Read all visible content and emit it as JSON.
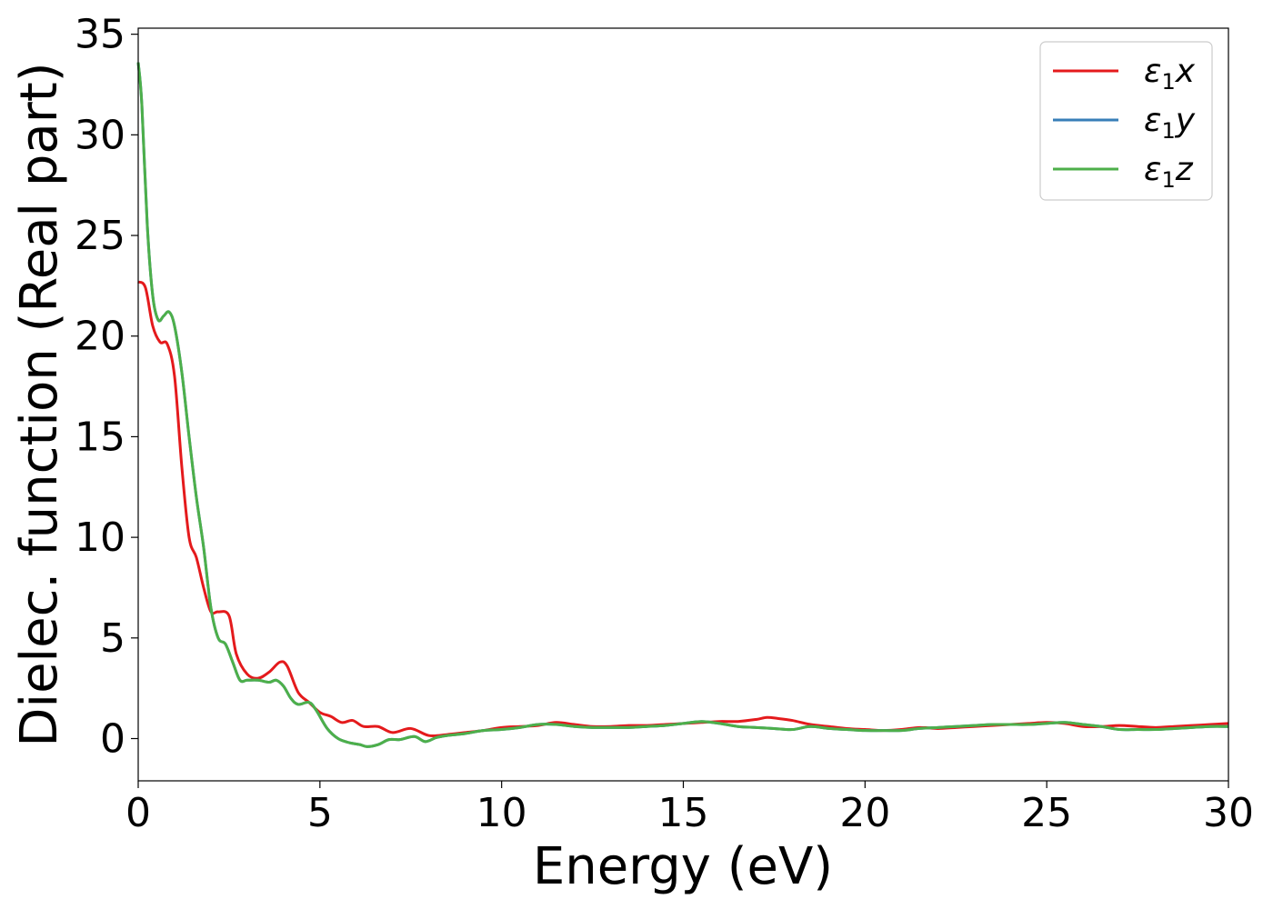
{
  "chart_data": {
    "type": "line",
    "xlabel": "Energy (eV)",
    "ylabel": "Dielec. function (Real part)",
    "xlim": [
      0,
      30
    ],
    "ylim": [
      -2.1,
      35.3
    ],
    "xticks": [
      0,
      5,
      10,
      15,
      20,
      25,
      30
    ],
    "yticks": [
      0,
      5,
      10,
      15,
      20,
      25,
      30,
      35
    ],
    "grid": false,
    "legend_position": "top-right",
    "series": [
      {
        "name": "ε₁x",
        "legend": {
          "sym": "ε",
          "sub": "1",
          "var": "x"
        },
        "color": "#e41a1c",
        "x": [
          0,
          0.2,
          0.4,
          0.6,
          0.8,
          1.0,
          1.2,
          1.4,
          1.6,
          1.8,
          2.0,
          2.2,
          2.5,
          2.7,
          3.0,
          3.3,
          3.6,
          3.9,
          4.1,
          4.4,
          4.7,
          5.0,
          5.3,
          5.6,
          5.9,
          6.2,
          6.6,
          7.0,
          7.5,
          8.0,
          8.5,
          9.0,
          9.5,
          10.0,
          10.5,
          11.0,
          11.5,
          12.0,
          12.5,
          13.0,
          13.5,
          14.0,
          14.5,
          15.0,
          15.5,
          16.0,
          16.5,
          17.0,
          17.3,
          17.6,
          18.0,
          18.5,
          19.0,
          19.5,
          20.0,
          20.5,
          21.0,
          21.5,
          22.0,
          22.5,
          23.0,
          23.5,
          24.0,
          24.5,
          25.0,
          25.5,
          26.0,
          26.5,
          27.0,
          27.5,
          28.0,
          28.5,
          29.0,
          29.5,
          30.0
        ],
        "y": [
          22.7,
          22.4,
          20.5,
          19.7,
          19.6,
          18.0,
          13.5,
          10.0,
          9.0,
          7.5,
          6.3,
          6.3,
          6.1,
          4.2,
          3.2,
          3.0,
          3.3,
          3.8,
          3.6,
          2.3,
          1.8,
          1.3,
          1.1,
          0.8,
          0.9,
          0.6,
          0.6,
          0.3,
          0.5,
          0.15,
          0.2,
          0.3,
          0.4,
          0.55,
          0.6,
          0.65,
          0.8,
          0.7,
          0.6,
          0.6,
          0.65,
          0.65,
          0.7,
          0.75,
          0.8,
          0.85,
          0.85,
          0.95,
          1.05,
          1.0,
          0.9,
          0.7,
          0.6,
          0.5,
          0.45,
          0.4,
          0.45,
          0.55,
          0.5,
          0.55,
          0.6,
          0.65,
          0.7,
          0.75,
          0.8,
          0.75,
          0.6,
          0.6,
          0.65,
          0.6,
          0.55,
          0.6,
          0.65,
          0.7,
          0.75
        ]
      },
      {
        "name": "ε₁y",
        "legend": {
          "sym": "ε",
          "sub": "1",
          "var": "y"
        },
        "color": "#377eb8",
        "x": [
          0,
          0.1,
          0.25,
          0.4,
          0.55,
          0.7,
          0.85,
          1.0,
          1.2,
          1.4,
          1.6,
          1.8,
          2.0,
          2.2,
          2.4,
          2.6,
          2.8,
          3.0,
          3.3,
          3.6,
          3.8,
          4.0,
          4.2,
          4.4,
          4.7,
          4.9,
          5.2,
          5.5,
          5.8,
          6.1,
          6.3,
          6.6,
          6.9,
          7.2,
          7.6,
          7.9,
          8.2,
          8.5,
          9.0,
          9.5,
          10.0,
          10.5,
          11.0,
          11.5,
          12.0,
          12.5,
          13.0,
          13.5,
          14.0,
          14.5,
          15.0,
          15.5,
          16.0,
          16.5,
          17.0,
          17.5,
          18.0,
          18.5,
          19.0,
          19.5,
          20.0,
          20.5,
          21.0,
          21.5,
          22.0,
          22.5,
          23.0,
          23.5,
          24.0,
          24.5,
          25.0,
          25.5,
          26.0,
          26.5,
          27.0,
          27.5,
          28.0,
          28.5,
          29.0,
          29.5,
          30.0
        ],
        "y": [
          33.6,
          31.5,
          25.5,
          22.0,
          20.8,
          21.0,
          21.2,
          20.5,
          18.2,
          15.0,
          12.0,
          9.5,
          6.5,
          5.0,
          4.7,
          3.8,
          2.9,
          2.9,
          2.9,
          2.8,
          2.9,
          2.6,
          2.0,
          1.7,
          1.8,
          1.4,
          0.5,
          0.0,
          -0.2,
          -0.3,
          -0.4,
          -0.3,
          -0.05,
          -0.05,
          0.1,
          -0.15,
          0.05,
          0.15,
          0.25,
          0.4,
          0.45,
          0.55,
          0.7,
          0.7,
          0.6,
          0.55,
          0.55,
          0.55,
          0.6,
          0.65,
          0.75,
          0.85,
          0.75,
          0.6,
          0.55,
          0.5,
          0.45,
          0.6,
          0.5,
          0.45,
          0.4,
          0.4,
          0.4,
          0.5,
          0.55,
          0.6,
          0.65,
          0.7,
          0.7,
          0.7,
          0.75,
          0.8,
          0.7,
          0.6,
          0.45,
          0.45,
          0.45,
          0.5,
          0.55,
          0.6,
          0.6
        ]
      },
      {
        "name": "ε₁z",
        "legend": {
          "sym": "ε",
          "sub": "1",
          "var": "z"
        },
        "color": "#4daf4a",
        "x": [
          0,
          0.1,
          0.25,
          0.4,
          0.55,
          0.7,
          0.85,
          1.0,
          1.2,
          1.4,
          1.6,
          1.8,
          2.0,
          2.2,
          2.4,
          2.6,
          2.8,
          3.0,
          3.3,
          3.6,
          3.8,
          4.0,
          4.2,
          4.4,
          4.7,
          4.9,
          5.2,
          5.5,
          5.8,
          6.1,
          6.3,
          6.6,
          6.9,
          7.2,
          7.6,
          7.9,
          8.2,
          8.5,
          9.0,
          9.5,
          10.0,
          10.5,
          11.0,
          11.5,
          12.0,
          12.5,
          13.0,
          13.5,
          14.0,
          14.5,
          15.0,
          15.5,
          16.0,
          16.5,
          17.0,
          17.5,
          18.0,
          18.5,
          19.0,
          19.5,
          20.0,
          20.5,
          21.0,
          21.5,
          22.0,
          22.5,
          23.0,
          23.5,
          24.0,
          24.5,
          25.0,
          25.5,
          26.0,
          26.5,
          27.0,
          27.5,
          28.0,
          28.5,
          29.0,
          29.5,
          30.0
        ],
        "y": [
          33.6,
          31.5,
          25.5,
          22.0,
          20.8,
          21.0,
          21.2,
          20.5,
          18.2,
          15.0,
          12.0,
          9.5,
          6.5,
          5.0,
          4.7,
          3.8,
          2.9,
          2.9,
          2.9,
          2.8,
          2.9,
          2.6,
          2.0,
          1.7,
          1.8,
          1.4,
          0.5,
          0.0,
          -0.2,
          -0.3,
          -0.4,
          -0.3,
          -0.05,
          -0.05,
          0.1,
          -0.15,
          0.05,
          0.15,
          0.25,
          0.4,
          0.45,
          0.55,
          0.7,
          0.7,
          0.6,
          0.55,
          0.55,
          0.55,
          0.6,
          0.65,
          0.75,
          0.85,
          0.75,
          0.6,
          0.55,
          0.5,
          0.45,
          0.6,
          0.5,
          0.45,
          0.4,
          0.4,
          0.4,
          0.5,
          0.55,
          0.6,
          0.65,
          0.7,
          0.7,
          0.7,
          0.75,
          0.8,
          0.7,
          0.6,
          0.45,
          0.45,
          0.45,
          0.5,
          0.55,
          0.6,
          0.6
        ]
      }
    ]
  }
}
